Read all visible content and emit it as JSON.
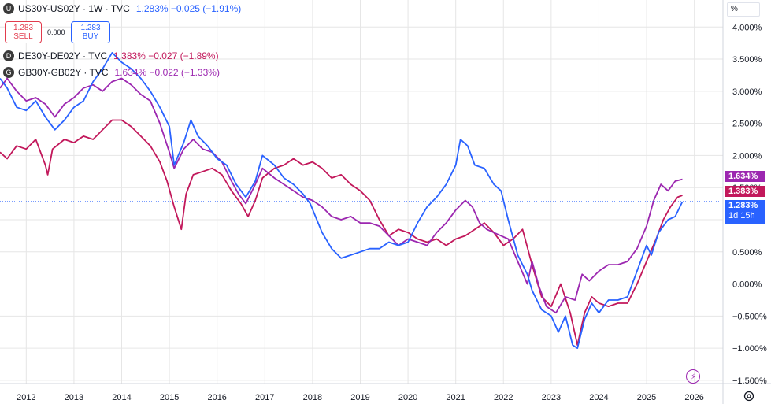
{
  "legend": {
    "main": {
      "badge": "U",
      "symbol": "US30Y-US02Y · 1W · TVC",
      "values": "1.283%  −0.025 (−1.91%)",
      "color": "#2962ff"
    },
    "s2": {
      "badge": "D",
      "symbol": "DE30Y-DE02Y · TVC",
      "values": "1.383%  −0.027 (−1.89%)",
      "color": "#c2185b"
    },
    "s3": {
      "badge": "G",
      "symbol": "GB30Y-GB02Y · TVC",
      "values": "1.634%  −0.022 (−1.33%)",
      "color": "#9c27b0"
    }
  },
  "trade": {
    "sell_price": "1.283",
    "sell_label": "SELL",
    "spread": "0.000",
    "buy_price": "1.283",
    "buy_label": "BUY"
  },
  "scale_mode": "%",
  "price_tags": {
    "gb": "1.634%",
    "de": "1.383%",
    "us": "1.283%",
    "countdown": "1d 15h"
  },
  "colors": {
    "us": "#2962ff",
    "de": "#c2185b",
    "gb": "#9c27b0",
    "grid": "#e6e6e6",
    "last_line": "#2962ff"
  },
  "icons": {
    "settings": "gear-icon",
    "flash": "lightning-icon"
  },
  "chart_data": {
    "type": "line",
    "x_ticks": [
      "2012",
      "2013",
      "2014",
      "2015",
      "2016",
      "2017",
      "2018",
      "2019",
      "2020",
      "2021",
      "2022",
      "2023",
      "2024",
      "2025",
      "2026"
    ],
    "y_ticks": [
      "4.000%",
      "3.500%",
      "3.000%",
      "2.500%",
      "2.000%",
      "1.500%",
      "1.000%",
      "0.500%",
      "0.000%",
      "−0.500%",
      "−1.000%",
      "−1.500%"
    ],
    "xlim": [
      2011.45,
      2026.6
    ],
    "ylim": [
      -1.55,
      4.42
    ],
    "last_value": 1.283,
    "series": [
      {
        "key": "us",
        "color": "#2962ff",
        "points": [
          [
            2011.45,
            3.2
          ],
          [
            2011.6,
            3.05
          ],
          [
            2011.8,
            2.75
          ],
          [
            2012.0,
            2.7
          ],
          [
            2012.2,
            2.85
          ],
          [
            2012.4,
            2.6
          ],
          [
            2012.6,
            2.4
          ],
          [
            2012.8,
            2.55
          ],
          [
            2013.0,
            2.75
          ],
          [
            2013.2,
            2.85
          ],
          [
            2013.4,
            3.15
          ],
          [
            2013.6,
            3.35
          ],
          [
            2013.8,
            3.6
          ],
          [
            2014.0,
            3.45
          ],
          [
            2014.2,
            3.35
          ],
          [
            2014.4,
            3.2
          ],
          [
            2014.6,
            3.0
          ],
          [
            2014.8,
            2.75
          ],
          [
            2015.0,
            2.45
          ],
          [
            2015.1,
            1.85
          ],
          [
            2015.3,
            2.2
          ],
          [
            2015.45,
            2.55
          ],
          [
            2015.6,
            2.3
          ],
          [
            2015.8,
            2.15
          ],
          [
            2016.0,
            1.95
          ],
          [
            2016.2,
            1.85
          ],
          [
            2016.4,
            1.55
          ],
          [
            2016.6,
            1.35
          ],
          [
            2016.8,
            1.6
          ],
          [
            2016.95,
            2.0
          ],
          [
            2017.2,
            1.85
          ],
          [
            2017.4,
            1.65
          ],
          [
            2017.6,
            1.55
          ],
          [
            2017.8,
            1.4
          ],
          [
            2017.95,
            1.25
          ],
          [
            2018.2,
            0.8
          ],
          [
            2018.4,
            0.55
          ],
          [
            2018.6,
            0.4
          ],
          [
            2018.8,
            0.45
          ],
          [
            2019.0,
            0.5
          ],
          [
            2019.2,
            0.55
          ],
          [
            2019.4,
            0.55
          ],
          [
            2019.6,
            0.65
          ],
          [
            2019.8,
            0.6
          ],
          [
            2020.0,
            0.65
          ],
          [
            2020.2,
            0.95
          ],
          [
            2020.4,
            1.2
          ],
          [
            2020.6,
            1.35
          ],
          [
            2020.8,
            1.55
          ],
          [
            2021.0,
            1.85
          ],
          [
            2021.1,
            2.25
          ],
          [
            2021.25,
            2.15
          ],
          [
            2021.4,
            1.85
          ],
          [
            2021.6,
            1.8
          ],
          [
            2021.8,
            1.55
          ],
          [
            2021.95,
            1.45
          ],
          [
            2022.1,
            1.0
          ],
          [
            2022.3,
            0.45
          ],
          [
            2022.5,
            0.15
          ],
          [
            2022.6,
            -0.1
          ],
          [
            2022.8,
            -0.4
          ],
          [
            2023.0,
            -0.5
          ],
          [
            2023.15,
            -0.75
          ],
          [
            2023.3,
            -0.5
          ],
          [
            2023.45,
            -0.95
          ],
          [
            2023.55,
            -1.0
          ],
          [
            2023.7,
            -0.55
          ],
          [
            2023.85,
            -0.3
          ],
          [
            2024.0,
            -0.45
          ],
          [
            2024.2,
            -0.25
          ],
          [
            2024.4,
            -0.25
          ],
          [
            2024.6,
            -0.2
          ],
          [
            2024.8,
            0.2
          ],
          [
            2025.0,
            0.6
          ],
          [
            2025.1,
            0.45
          ],
          [
            2025.25,
            0.8
          ],
          [
            2025.45,
            1.0
          ],
          [
            2025.6,
            1.05
          ],
          [
            2025.75,
            1.28
          ]
        ]
      },
      {
        "key": "de",
        "color": "#c2185b",
        "points": [
          [
            2011.45,
            2.05
          ],
          [
            2011.6,
            1.95
          ],
          [
            2011.8,
            2.15
          ],
          [
            2012.0,
            2.1
          ],
          [
            2012.2,
            2.25
          ],
          [
            2012.4,
            1.85
          ],
          [
            2012.45,
            1.7
          ],
          [
            2012.55,
            2.1
          ],
          [
            2012.8,
            2.25
          ],
          [
            2013.0,
            2.2
          ],
          [
            2013.2,
            2.3
          ],
          [
            2013.4,
            2.25
          ],
          [
            2013.6,
            2.4
          ],
          [
            2013.8,
            2.55
          ],
          [
            2014.0,
            2.55
          ],
          [
            2014.2,
            2.45
          ],
          [
            2014.4,
            2.3
          ],
          [
            2014.6,
            2.15
          ],
          [
            2014.8,
            1.9
          ],
          [
            2014.95,
            1.6
          ],
          [
            2015.1,
            1.2
          ],
          [
            2015.25,
            0.85
          ],
          [
            2015.35,
            1.4
          ],
          [
            2015.5,
            1.7
          ],
          [
            2015.7,
            1.75
          ],
          [
            2015.9,
            1.8
          ],
          [
            2016.1,
            1.7
          ],
          [
            2016.3,
            1.45
          ],
          [
            2016.5,
            1.25
          ],
          [
            2016.65,
            1.05
          ],
          [
            2016.8,
            1.3
          ],
          [
            2016.95,
            1.65
          ],
          [
            2017.2,
            1.8
          ],
          [
            2017.4,
            1.85
          ],
          [
            2017.6,
            1.95
          ],
          [
            2017.8,
            1.85
          ],
          [
            2018.0,
            1.9
          ],
          [
            2018.2,
            1.8
          ],
          [
            2018.4,
            1.65
          ],
          [
            2018.6,
            1.7
          ],
          [
            2018.8,
            1.55
          ],
          [
            2019.0,
            1.45
          ],
          [
            2019.2,
            1.3
          ],
          [
            2019.4,
            1.0
          ],
          [
            2019.6,
            0.75
          ],
          [
            2019.8,
            0.85
          ],
          [
            2020.0,
            0.8
          ],
          [
            2020.2,
            0.7
          ],
          [
            2020.4,
            0.65
          ],
          [
            2020.6,
            0.7
          ],
          [
            2020.8,
            0.6
          ],
          [
            2021.0,
            0.7
          ],
          [
            2021.2,
            0.75
          ],
          [
            2021.4,
            0.85
          ],
          [
            2021.6,
            0.95
          ],
          [
            2021.8,
            0.8
          ],
          [
            2022.0,
            0.6
          ],
          [
            2022.2,
            0.7
          ],
          [
            2022.4,
            0.85
          ],
          [
            2022.6,
            0.3
          ],
          [
            2022.8,
            -0.2
          ],
          [
            2023.0,
            -0.35
          ],
          [
            2023.2,
            0.0
          ],
          [
            2023.4,
            -0.45
          ],
          [
            2023.55,
            -0.95
          ],
          [
            2023.7,
            -0.45
          ],
          [
            2023.85,
            -0.2
          ],
          [
            2024.0,
            -0.3
          ],
          [
            2024.2,
            -0.35
          ],
          [
            2024.4,
            -0.3
          ],
          [
            2024.6,
            -0.3
          ],
          [
            2024.8,
            0.0
          ],
          [
            2025.0,
            0.35
          ],
          [
            2025.2,
            0.7
          ],
          [
            2025.35,
            1.0
          ],
          [
            2025.5,
            1.2
          ],
          [
            2025.65,
            1.35
          ],
          [
            2025.75,
            1.38
          ]
        ]
      },
      {
        "key": "gb",
        "color": "#9c27b0",
        "points": [
          [
            2011.45,
            3.05
          ],
          [
            2011.6,
            3.2
          ],
          [
            2011.8,
            3.0
          ],
          [
            2012.0,
            2.85
          ],
          [
            2012.2,
            2.9
          ],
          [
            2012.4,
            2.8
          ],
          [
            2012.6,
            2.6
          ],
          [
            2012.8,
            2.8
          ],
          [
            2013.0,
            2.9
          ],
          [
            2013.2,
            3.05
          ],
          [
            2013.4,
            3.1
          ],
          [
            2013.6,
            3.0
          ],
          [
            2013.8,
            3.15
          ],
          [
            2014.0,
            3.2
          ],
          [
            2014.2,
            3.1
          ],
          [
            2014.4,
            2.95
          ],
          [
            2014.6,
            2.85
          ],
          [
            2014.8,
            2.5
          ],
          [
            2015.0,
            2.05
          ],
          [
            2015.1,
            1.8
          ],
          [
            2015.3,
            2.1
          ],
          [
            2015.5,
            2.25
          ],
          [
            2015.7,
            2.1
          ],
          [
            2015.9,
            2.05
          ],
          [
            2016.1,
            1.9
          ],
          [
            2016.3,
            1.6
          ],
          [
            2016.45,
            1.4
          ],
          [
            2016.6,
            1.25
          ],
          [
            2016.8,
            1.55
          ],
          [
            2016.95,
            1.8
          ],
          [
            2017.2,
            1.65
          ],
          [
            2017.4,
            1.55
          ],
          [
            2017.6,
            1.45
          ],
          [
            2017.8,
            1.35
          ],
          [
            2018.0,
            1.3
          ],
          [
            2018.2,
            1.2
          ],
          [
            2018.4,
            1.05
          ],
          [
            2018.6,
            1.0
          ],
          [
            2018.8,
            1.05
          ],
          [
            2019.0,
            0.95
          ],
          [
            2019.2,
            0.95
          ],
          [
            2019.4,
            0.9
          ],
          [
            2019.6,
            0.75
          ],
          [
            2019.8,
            0.6
          ],
          [
            2020.0,
            0.7
          ],
          [
            2020.2,
            0.65
          ],
          [
            2020.4,
            0.6
          ],
          [
            2020.6,
            0.8
          ],
          [
            2020.8,
            0.95
          ],
          [
            2021.0,
            1.15
          ],
          [
            2021.2,
            1.3
          ],
          [
            2021.35,
            1.2
          ],
          [
            2021.5,
            0.95
          ],
          [
            2021.65,
            0.85
          ],
          [
            2021.8,
            0.8
          ],
          [
            2021.95,
            0.75
          ],
          [
            2022.1,
            0.7
          ],
          [
            2022.3,
            0.35
          ],
          [
            2022.5,
            0.0
          ],
          [
            2022.6,
            0.35
          ],
          [
            2022.75,
            -0.05
          ],
          [
            2022.9,
            -0.35
          ],
          [
            2023.1,
            -0.45
          ],
          [
            2023.3,
            -0.2
          ],
          [
            2023.5,
            -0.25
          ],
          [
            2023.65,
            0.15
          ],
          [
            2023.8,
            0.05
          ],
          [
            2024.0,
            0.2
          ],
          [
            2024.2,
            0.3
          ],
          [
            2024.4,
            0.3
          ],
          [
            2024.6,
            0.35
          ],
          [
            2024.8,
            0.55
          ],
          [
            2025.0,
            0.9
          ],
          [
            2025.15,
            1.3
          ],
          [
            2025.3,
            1.55
          ],
          [
            2025.45,
            1.45
          ],
          [
            2025.6,
            1.6
          ],
          [
            2025.75,
            1.63
          ]
        ]
      }
    ]
  }
}
